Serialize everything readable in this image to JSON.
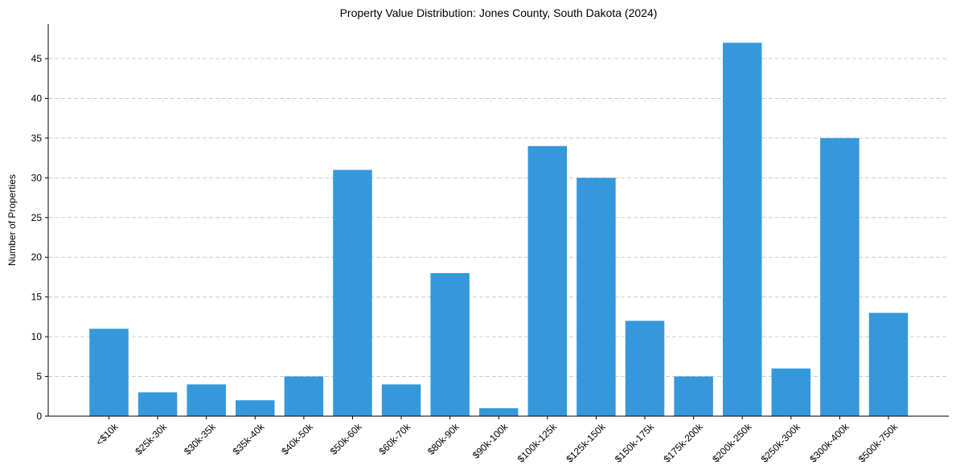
{
  "chart_data": {
    "type": "bar",
    "title": "Property Value Distribution: Jones County, South Dakota (2024)",
    "xlabel": "",
    "ylabel": "Number of Properties",
    "categories": [
      "<$10k",
      "$25k-30k",
      "$30k-35k",
      "$35k-40k",
      "$40k-50k",
      "$50k-60k",
      "$60k-70k",
      "$80k-90k",
      "$90k-100k",
      "$100k-125k",
      "$125k-150k",
      "$150k-175k",
      "$175k-200k",
      "$200k-250k",
      "$250k-300k",
      "$300k-400k",
      "$500k-750k"
    ],
    "values": [
      11,
      3,
      4,
      2,
      5,
      31,
      4,
      18,
      1,
      34,
      30,
      12,
      5,
      47,
      6,
      35,
      13
    ],
    "yticks": [
      0,
      5,
      10,
      15,
      20,
      25,
      30,
      35,
      40,
      45
    ],
    "ylim": [
      0,
      49.35
    ],
    "grid": "y-dashed",
    "bar_color": "#3498db",
    "legend": "none"
  }
}
